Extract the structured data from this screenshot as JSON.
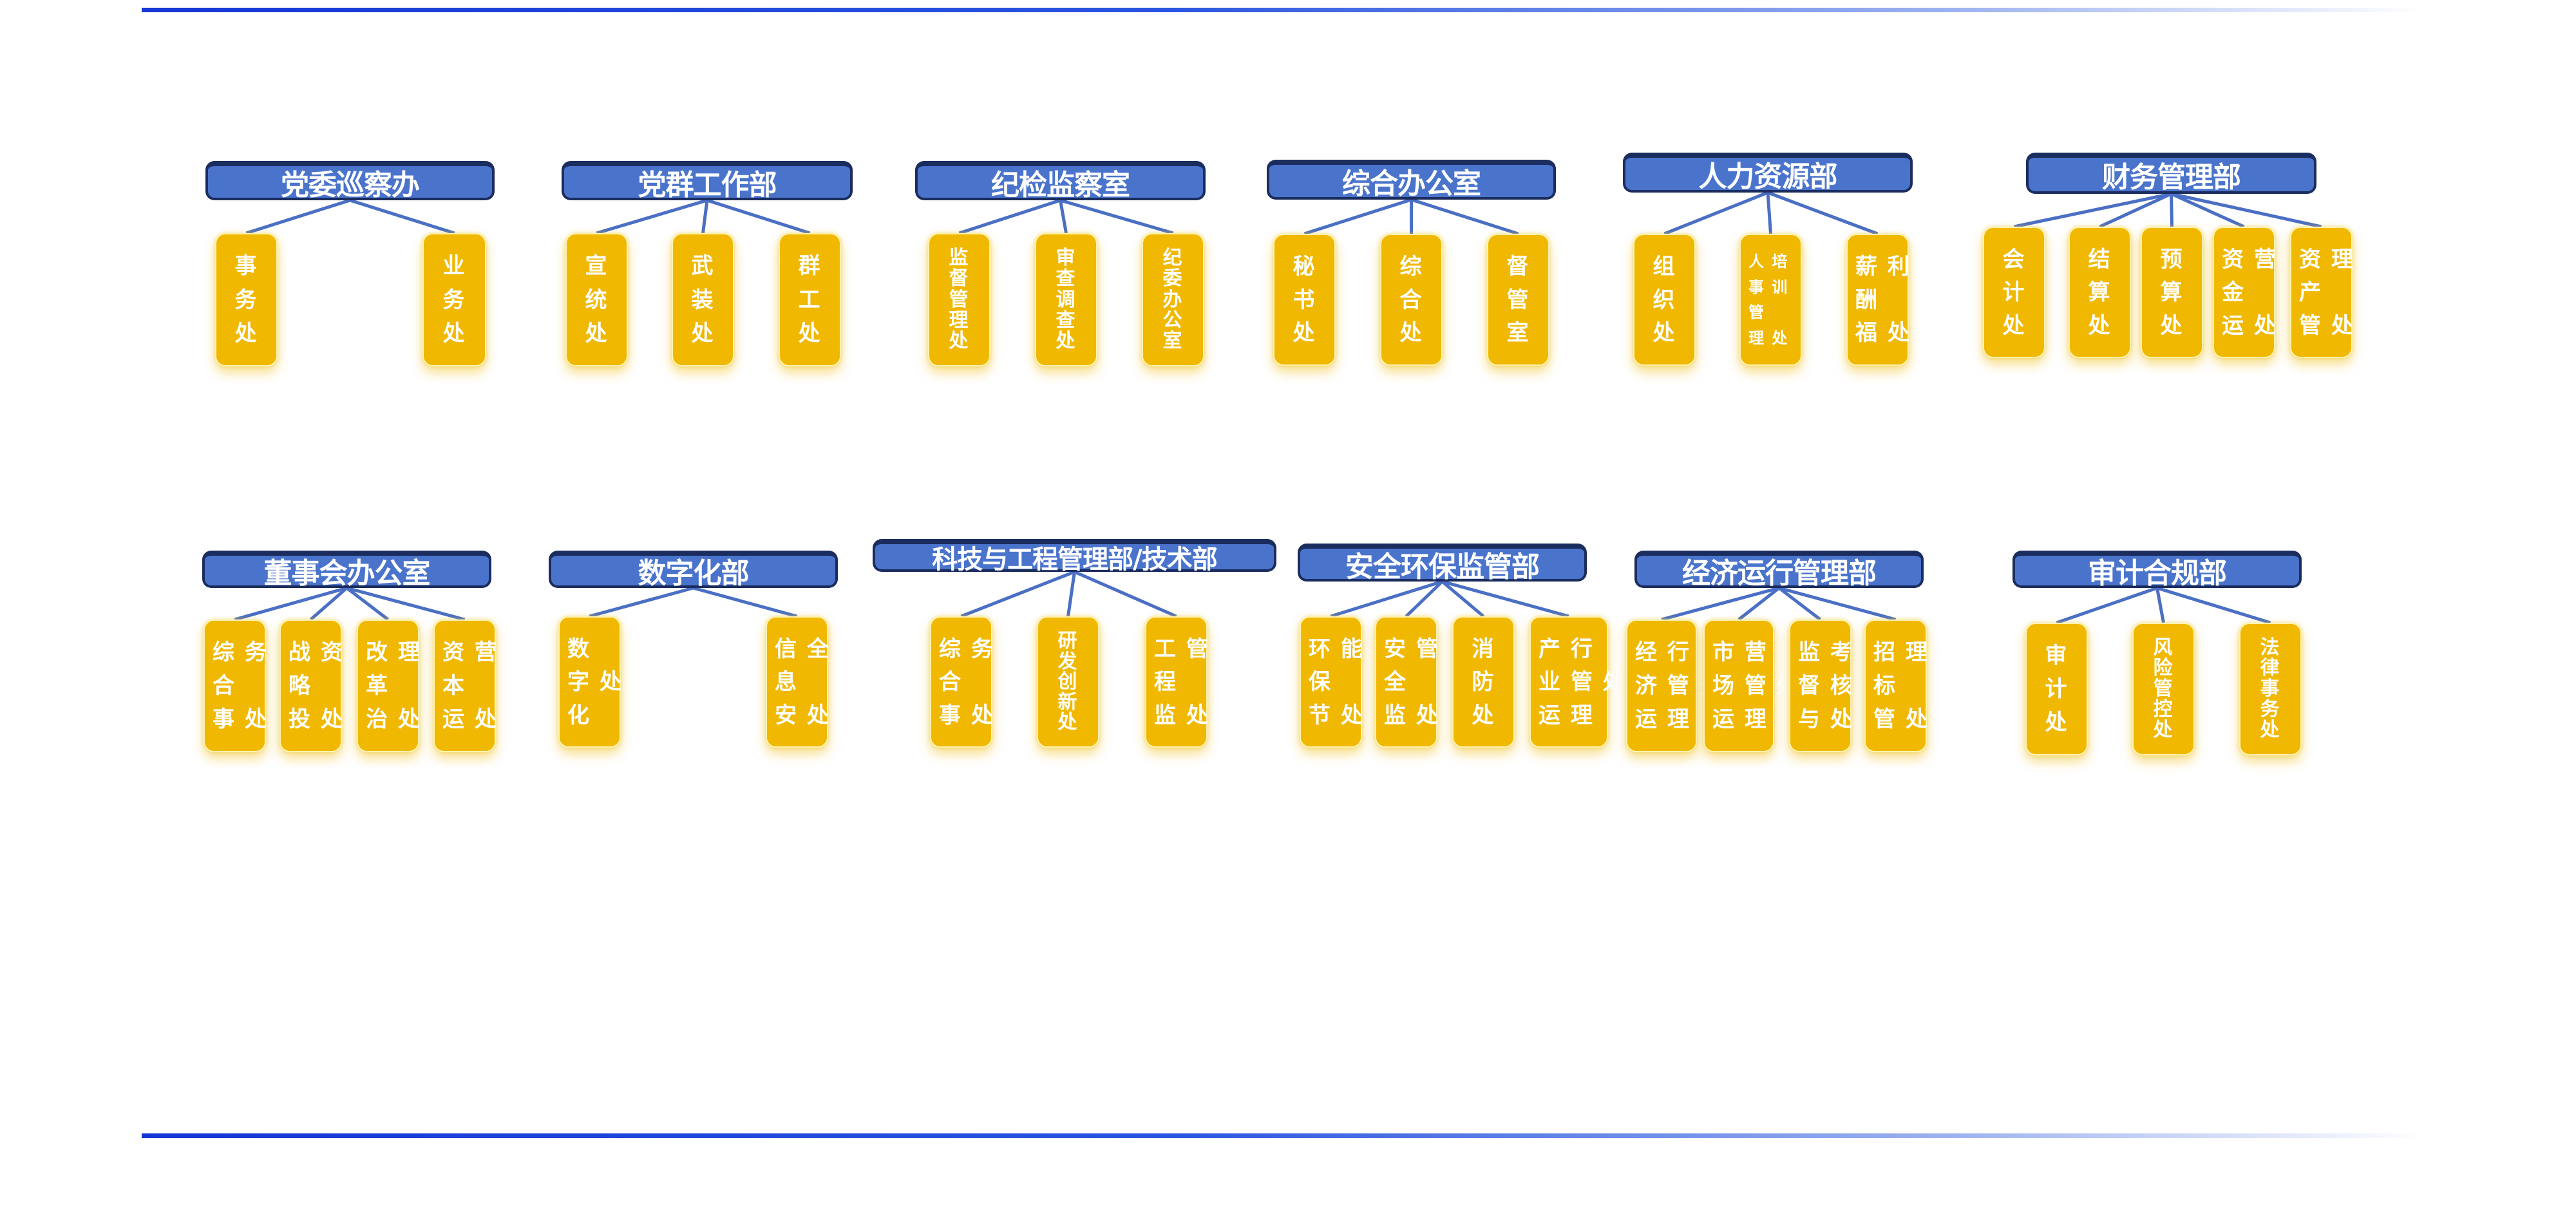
{
  "colors": {
    "header_fill": "#4a74cc",
    "header_border": "#1b2d5e",
    "unit_fill": "#f0b800",
    "connector": "#4a6fc4",
    "rule": "#1537d6"
  },
  "departments": [
    {
      "title": "党委巡察办",
      "units": [
        {
          "rows": [
            "事",
            "务",
            "处"
          ]
        },
        {
          "rows": [
            "业",
            "务",
            "处"
          ]
        }
      ]
    },
    {
      "title": "党群工作部",
      "units": [
        {
          "rows": [
            "宣",
            "统",
            "处"
          ]
        },
        {
          "rows": [
            "武",
            "装",
            "处"
          ]
        },
        {
          "rows": [
            "群",
            "工",
            "处"
          ]
        }
      ]
    },
    {
      "title": "纪检监察室",
      "units": [
        {
          "rows": [
            "监",
            "督",
            "管",
            "理",
            "处"
          ]
        },
        {
          "rows": [
            "审",
            "查",
            "调",
            "查",
            "处"
          ]
        },
        {
          "rows": [
            "纪",
            "委",
            "办",
            "公",
            "室"
          ]
        }
      ]
    },
    {
      "title": "综合办公室",
      "units": [
        {
          "rows": [
            "秘",
            "书",
            "处"
          ]
        },
        {
          "rows": [
            "综",
            "合",
            "处"
          ]
        },
        {
          "rows": [
            "督",
            "管",
            "室"
          ]
        }
      ]
    },
    {
      "title": "人力资源部",
      "units": [
        {
          "rows": [
            "组",
            "织",
            "处"
          ]
        },
        {
          "rows": [
            "人 培",
            "事 训",
            "管",
            "理 处"
          ]
        },
        {
          "rows": [
            "薪 利",
            "酬",
            "福 处"
          ]
        }
      ]
    },
    {
      "title": "财务管理部",
      "units": [
        {
          "rows": [
            "会",
            "计",
            "处"
          ]
        },
        {
          "rows": [
            "结",
            "算",
            "处"
          ]
        },
        {
          "rows": [
            "预",
            "算",
            "处"
          ]
        },
        {
          "rows": [
            "资 营",
            "金",
            "运 处"
          ]
        },
        {
          "rows": [
            "资 理",
            "产",
            "管 处"
          ]
        }
      ]
    },
    {
      "title": "董事会办公室",
      "units": [
        {
          "rows": [
            "综 务",
            "合",
            "事 处"
          ]
        },
        {
          "rows": [
            "战 资",
            "略",
            "投 处"
          ]
        },
        {
          "rows": [
            "改 理",
            "革",
            "治 处"
          ]
        },
        {
          "rows": [
            "资 营",
            "本",
            "运 处"
          ]
        }
      ]
    },
    {
      "title": "数字化部",
      "units": [
        {
          "rows": [
            "数",
            "字 处",
            "化"
          ]
        },
        {
          "rows": [
            "信 全",
            "息",
            "安 处"
          ]
        }
      ]
    },
    {
      "title": "科技与工程管理部/技术部",
      "units": [
        {
          "rows": [
            "综 务",
            "合",
            "事 处"
          ]
        },
        {
          "rows": [
            "研",
            "发",
            "创",
            "新",
            "处"
          ]
        },
        {
          "rows": [
            "工 管",
            "程",
            "监 处"
          ]
        }
      ]
    },
    {
      "title": "安全环保监管部",
      "units": [
        {
          "rows": [
            "环 能",
            "保",
            "节 处"
          ]
        },
        {
          "rows": [
            "安 管",
            "全",
            "监 处"
          ]
        },
        {
          "rows": [
            "消",
            "防",
            "处"
          ]
        },
        {
          "rows": [
            "产 行",
            "业 管 处",
            "运 理"
          ]
        }
      ]
    },
    {
      "title": "经济运行管理部",
      "units": [
        {
          "rows": [
            "经 行",
            "济 管 处",
            "运 理"
          ]
        },
        {
          "rows": [
            "市 营",
            "场 管 处",
            "运 理"
          ]
        },
        {
          "rows": [
            "监 考",
            "督 核",
            "与 处"
          ]
        },
        {
          "rows": [
            "招 理",
            "标",
            "管 处"
          ]
        }
      ]
    },
    {
      "title": "审计合规部",
      "units": [
        {
          "rows": [
            "审",
            "计",
            "处"
          ]
        },
        {
          "rows": [
            "风",
            "险",
            "管",
            "控",
            "处"
          ]
        },
        {
          "rows": [
            "法",
            "律",
            "事",
            "务",
            "处"
          ]
        }
      ]
    }
  ]
}
